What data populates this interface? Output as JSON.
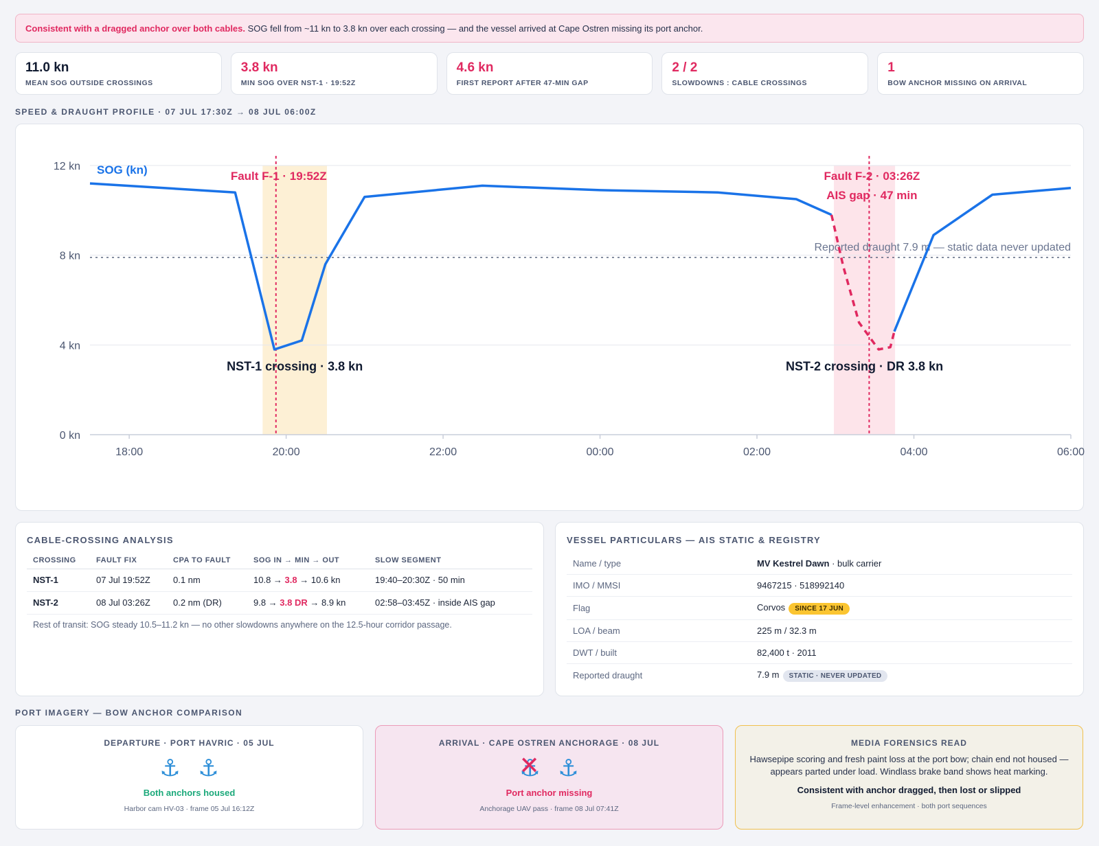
{
  "alert": {
    "bold": "Consistent with a dragged anchor over both cables.",
    "rest": " SOG fell from ~11 kn to 3.8 kn over each crossing — and the vessel arrived at Cape Ostren missing its port anchor."
  },
  "kpis": [
    {
      "value": "11.0 kn",
      "label": "MEAN SOG OUTSIDE CROSSINGS",
      "color": "#101a30"
    },
    {
      "value": "3.8 kn",
      "label": "MIN SOG OVER NST-1 · 19:52Z",
      "color": "#e02960"
    },
    {
      "value": "4.6 kn",
      "label": "FIRST REPORT AFTER 47-MIN GAP",
      "color": "#e02960"
    },
    {
      "value": "2 / 2",
      "label": "SLOWDOWNS : CABLE CROSSINGS",
      "color": "#e02960"
    },
    {
      "value": "1",
      "label": "BOW ANCHOR MISSING ON ARRIVAL",
      "color": "#e02960"
    }
  ],
  "chart_section_title": "SPEED & DRAUGHT PROFILE · 07 JUL 17:30Z → 08 JUL 06:00Z",
  "chart_data": {
    "type": "line",
    "x_start": "07 Jul 17:30Z",
    "x_end": "08 Jul 06:00Z",
    "xlim_hours": [
      -6.5,
      6.0
    ],
    "ylim": [
      0,
      12
    ],
    "y_ticks": [
      {
        "value": 0,
        "label": "0 kn"
      },
      {
        "value": 4,
        "label": "4 kn"
      },
      {
        "value": 8,
        "label": "8 kn"
      },
      {
        "value": 12,
        "label": "12 kn"
      }
    ],
    "x_ticks": [
      {
        "value": -6,
        "label": "18:00"
      },
      {
        "value": -4,
        "label": "20:00"
      },
      {
        "value": -2,
        "label": "22:00"
      },
      {
        "value": 0,
        "label": "00:00"
      },
      {
        "value": 2,
        "label": "02:00"
      },
      {
        "value": 4,
        "label": "04:00"
      },
      {
        "value": 6,
        "label": "06:00"
      }
    ],
    "series": [
      {
        "name": "SOG (kn)",
        "color": "#1a73e8",
        "segments": [
          {
            "style": "solid",
            "points": [
              [
                -6.5,
                11.2
              ],
              [
                -4.65,
                10.8
              ],
              [
                -4.15,
                3.8
              ],
              [
                -3.8,
                4.2
              ],
              [
                -3.5,
                7.6
              ],
              [
                -3.0,
                10.6
              ],
              [
                -1.5,
                11.1
              ],
              [
                0.0,
                10.9
              ],
              [
                1.5,
                10.8
              ],
              [
                2.5,
                10.5
              ],
              [
                2.95,
                9.8
              ]
            ]
          },
          {
            "style": "dashed",
            "points": [
              [
                2.95,
                9.8
              ],
              [
                3.1,
                7.5
              ],
              [
                3.3,
                5.0
              ],
              [
                3.55,
                3.8
              ],
              [
                3.7,
                3.9
              ],
              [
                3.75,
                4.6
              ]
            ]
          },
          {
            "style": "solid",
            "points": [
              [
                3.75,
                4.6
              ],
              [
                4.25,
                8.9
              ],
              [
                5.0,
                10.7
              ],
              [
                6.0,
                11.0
              ]
            ]
          }
        ]
      }
    ],
    "reference_line": {
      "value": 7.9,
      "label": "Reported draught 7.9 m — static data never updated"
    },
    "bands": [
      {
        "from": -4.3,
        "to": -3.48,
        "color": "#fdf0d5",
        "label": "NST-1 crossing · 3.8 kn"
      },
      {
        "from": 2.98,
        "to": 3.76,
        "color": "#fde4ea",
        "label": "NST-2 crossing · DR 3.8 kn"
      }
    ],
    "faults": [
      {
        "x": -4.13,
        "labels": [
          "Fault F-1 · 19:52Z"
        ]
      },
      {
        "x": 3.43,
        "labels": [
          "Fault F-2 · 03:26Z",
          "AIS gap · 47 min"
        ]
      }
    ]
  },
  "cable": {
    "title": "CABLE-CROSSING ANALYSIS",
    "headers": [
      "CROSSING",
      "FAULT FIX",
      "CPA TO FAULT",
      "SOG IN → MIN → OUT",
      "SLOW SEGMENT"
    ],
    "rows": [
      {
        "crossing": "NST-1",
        "fix": "07 Jul 19:52Z",
        "cpa": "0.1 nm",
        "sog_in": "10.8 → ",
        "sog_min": "3.8",
        "sog_out": " → 10.6 kn",
        "slow": "19:40–20:30Z · 50 min"
      },
      {
        "crossing": "NST-2",
        "fix": "08 Jul 03:26Z",
        "cpa": "0.2 nm (DR)",
        "sog_in": "9.8 → ",
        "sog_min": "3.8 DR",
        "sog_out": " → 8.9 kn",
        "slow": "02:58–03:45Z · inside AIS gap"
      }
    ],
    "note": "Rest of transit: SOG steady 10.5–11.2 kn — no other slowdowns anywhere on the 12.5-hour corridor passage."
  },
  "vessel": {
    "title": "VESSEL PARTICULARS — AIS STATIC & REGISTRY",
    "name_key": "Name / type",
    "name_bold": "MV Kestrel Dawn",
    "name_rest": " · bulk carrier",
    "imo_key": "IMO / MMSI",
    "imo_val": "9467215 · 518992140",
    "flag_key": "Flag",
    "flag_val": "Corvos",
    "flag_badge": "SINCE 17 JUN",
    "loa_key": "LOA / beam",
    "loa_val": "225 m / 32.3 m",
    "dwt_key": "DWT / built",
    "dwt_val": "82,400 t · 2011",
    "draught_key": "Reported draught",
    "draught_val": "7.9 m",
    "draught_badge": "STATIC · NEVER UPDATED"
  },
  "imagery": {
    "section_title": "PORT IMAGERY — BOW ANCHOR COMPARISON",
    "departure": {
      "title": "DEPARTURE · PORT HAVRIC · 05 JUL",
      "status": "Both anchors housed",
      "meta": "Harbor cam HV-03 · frame 05 Jul 16:12Z",
      "icon": "⚓"
    },
    "arrival": {
      "title": "ARRIVAL · CAPE OSTREN ANCHORAGE · 08 JUL",
      "status": "Port anchor missing",
      "meta": "Anchorage UAV pass · frame 08 Jul 07:41Z",
      "icon": "⚓",
      "missing_mark": "✕"
    },
    "forensics": {
      "title": "MEDIA FORENSICS READ",
      "body": "Hawsepipe scoring and fresh paint loss at the port bow; chain end not housed — appears parted under load. Windlass brake band shows heat marking.",
      "conclusion": "Consistent with anchor dragged, then lost or slipped",
      "meta": "Frame-level enhancement · both port sequences"
    }
  }
}
